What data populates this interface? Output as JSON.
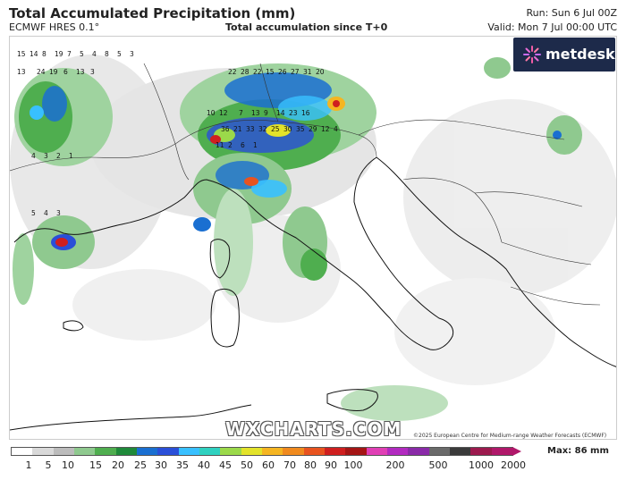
{
  "header": {
    "title": "Total Accumulated Precipitation (mm)",
    "model": "ECMWF HRES 0.1°",
    "subtitle": "Total accumulation since T+0",
    "run": "Run: Sun 6 Jul 00Z",
    "valid": "Valid: Mon 7 Jul 00:00 UTC"
  },
  "logo": {
    "text": "metdesk",
    "icon": "metdesk-starburst-icon"
  },
  "watermark": "WXCHARTS.COM",
  "copyright": "©2025 European Centre for Medium-range Weather Forecasts (ECMWF)",
  "legend": {
    "max_label": "Max: 86 mm",
    "ticks": [
      "1",
      "5",
      "10",
      "15",
      "20",
      "25",
      "30",
      "35",
      "40",
      "45",
      "50",
      "60",
      "70",
      "80",
      "90",
      "100",
      "200",
      "500",
      "1000",
      "2000"
    ],
    "colors": [
      "#ffffff",
      "#d9d9d9",
      "#bcbcbc",
      "#8fc98f",
      "#4fae4f",
      "#1f8a3a",
      "#1a6fd1",
      "#2a4fd8",
      "#38c0ff",
      "#2fd1c0",
      "#9bd94a",
      "#e3e32a",
      "#f5b521",
      "#f08a1e",
      "#e8531f",
      "#cf1f1f",
      "#a51515",
      "#e03fb5",
      "#b22ac0",
      "#8a2aa8",
      "#6a6a6a",
      "#3a3a3a",
      "#9c1a4e",
      "#b0186a"
    ]
  },
  "map": {
    "region": "Italy, Alps, Balkans and western Mediterranean",
    "value_labels": [
      "15",
      "14",
      "8",
      "19",
      "7",
      "5",
      "4",
      "8",
      "5",
      "3",
      "24",
      "19",
      "13",
      "6",
      "13",
      "3",
      "22",
      "28",
      "22",
      "15",
      "26",
      "27",
      "31",
      "20",
      "13",
      "10",
      "12",
      "7",
      "9",
      "14",
      "23",
      "16",
      "36",
      "21",
      "33",
      "32",
      "25",
      "30",
      "35",
      "29",
      "12",
      "4",
      "11",
      "2",
      "6",
      "1",
      "4",
      "3",
      "2",
      "1",
      "5",
      "4",
      "3"
    ]
  }
}
